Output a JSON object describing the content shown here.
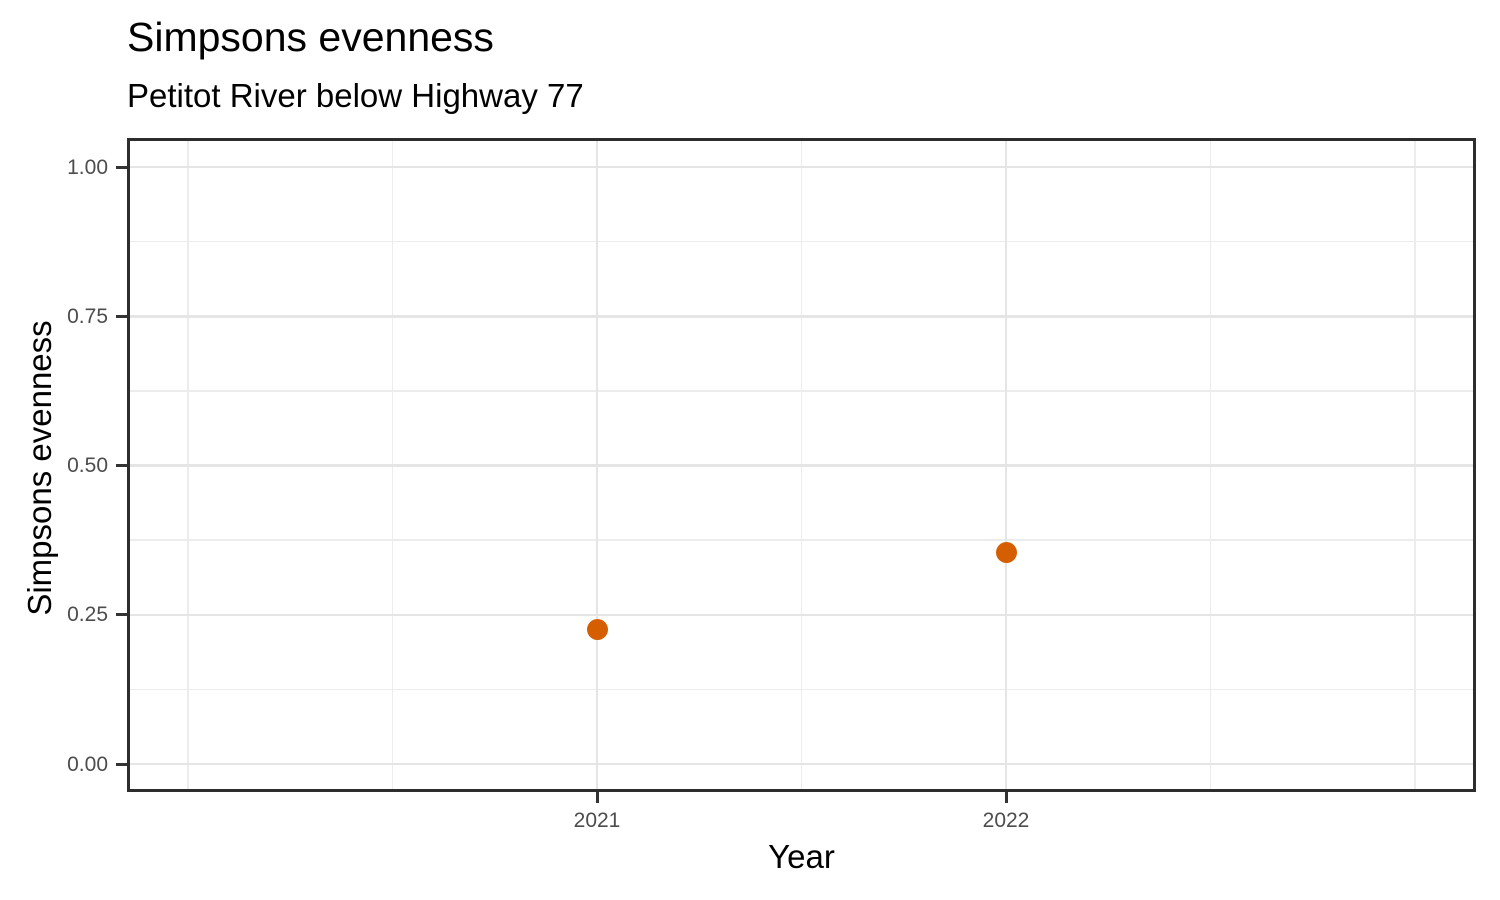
{
  "chart_data": {
    "type": "scatter",
    "title": "Simpsons evenness",
    "subtitle": "Petitot River below Highway 77",
    "xlabel": "Year",
    "ylabel": "Simpsons evenness",
    "points": [
      {
        "x": 2021,
        "y": 0.225
      },
      {
        "x": 2022,
        "y": 0.355
      }
    ],
    "point_color": "#D55E00",
    "x_ticks": [
      {
        "value": 2021,
        "label": "2021"
      },
      {
        "value": 2022,
        "label": "2022"
      }
    ],
    "y_ticks": [
      {
        "value": 0.0,
        "label": "0.00"
      },
      {
        "value": 0.25,
        "label": "0.25"
      },
      {
        "value": 0.5,
        "label": "0.50"
      },
      {
        "value": 0.75,
        "label": "0.75"
      },
      {
        "value": 1.0,
        "label": "1.00"
      }
    ],
    "y_minor_gridlines": [
      0.125,
      0.375,
      0.625,
      0.875
    ],
    "x_major_gridlines": [
      2021,
      2022
    ],
    "x_minor_gridlines": [
      2020,
      2020.5,
      2021.5,
      2022.5,
      2023
    ],
    "xlim": [
      2019.85,
      2023.15
    ],
    "ylim": [
      -0.047,
      1.048
    ],
    "grid": true,
    "legend": false,
    "colors": {
      "grid_major": "#e5e5e5",
      "grid_minor": "#ececec",
      "panel_border": "#2d2d2d",
      "tick_mark": "#333333",
      "tick_label": "#4d4d4d",
      "title_text": "#000000",
      "background": "#ffffff"
    }
  }
}
